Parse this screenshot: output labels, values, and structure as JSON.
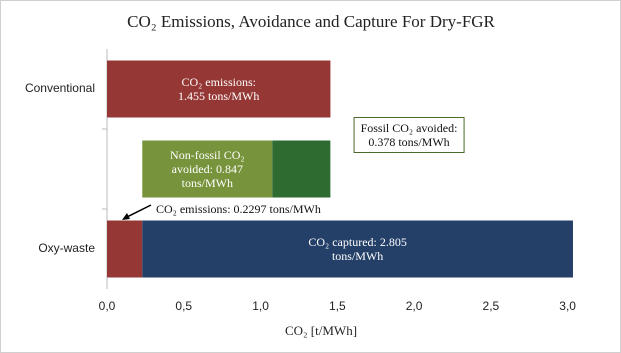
{
  "chart_data": {
    "type": "floating-bar",
    "title": "CO₂ Emissions, Avoidance and Capture For Dry-FGR",
    "x_label": "CO₂ [t/MWh]",
    "categories": [
      "Conventional",
      null,
      "Oxy-waste"
    ],
    "series": [
      {
        "color": "#953735",
        "values": [
          1.455,
          null,
          0.2297
        ],
        "value_labels": [
          "CO₂  emissions:\n1.455 tons/MWh",
          null,
          "CO₂ emissions: 0.2297 tons/MWh"
        ]
      },
      {
        "color": "#77933c",
        "values": [
          null,
          0.847,
          null
        ],
        "value_labels": [
          null,
          "Non-fossil CO₂\navoided: 0.847\ntons/MWh",
          null
        ]
      },
      {
        "color": "#2e6b30",
        "values": [
          null,
          0.378,
          null
        ],
        "value_labels": [
          null,
          "Fossil CO₂ avoided:\n0.378 tons/MWh",
          null
        ]
      },
      {
        "color": "#243f68",
        "values": [
          null,
          null,
          2.805
        ],
        "value_labels": [
          null,
          null,
          "CO₂ captured: 2.805\ntons/MWh"
        ]
      }
    ],
    "xlim": [
      0,
      3.1
    ],
    "xticks": [
      {
        "value": 0,
        "label": "0,0"
      },
      {
        "value": 0.5,
        "label": "0,5"
      },
      {
        "value": 1,
        "label": "1,0"
      },
      {
        "value": 1.5,
        "label": "1,5"
      },
      {
        "value": 2,
        "label": "2,0"
      },
      {
        "value": 2.5,
        "label": "2,5"
      },
      {
        "value": 3,
        "label": "3,0"
      }
    ]
  }
}
